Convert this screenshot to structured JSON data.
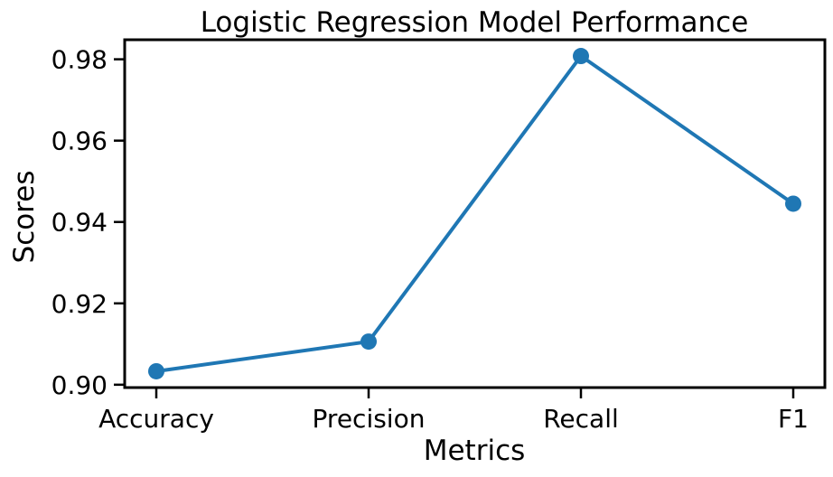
{
  "chart_data": {
    "type": "line",
    "title": "Logistic Regression Model Performance",
    "xlabel": "Metrics",
    "ylabel": "Scores",
    "categories": [
      "Accuracy",
      "Precision",
      "Recall",
      "F1"
    ],
    "series": [
      {
        "values": [
          0.9033,
          0.9106,
          0.9808,
          0.9445
        ]
      }
    ],
    "ylim": [
      0.8993,
      0.9848
    ],
    "yticks": [
      0.9,
      0.92,
      0.94,
      0.96,
      0.98
    ],
    "ytick_labels": [
      "0.90",
      "0.92",
      "0.94",
      "0.96",
      "0.98"
    ],
    "grid": false,
    "colors": {
      "line": "#1f77b4",
      "axis": "#000000"
    }
  }
}
